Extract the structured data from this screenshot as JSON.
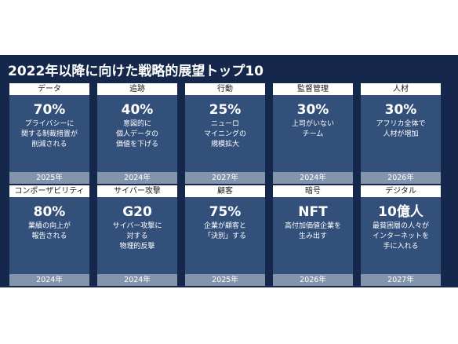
{
  "slide": {
    "title": "2022年以降に向けた戦略的展望トップ10",
    "background": "#15284b",
    "card_color": "#33507a",
    "year_bar_color": "#8295ad"
  },
  "cards": [
    {
      "category": "データ",
      "value": "70%",
      "lines": [
        "プライバシーに",
        "関する制裁措置が",
        "削減される"
      ],
      "year": "2025年"
    },
    {
      "category": "追跡",
      "value": "40%",
      "lines": [
        "意図的に",
        "個人データの",
        "価値を下げる"
      ],
      "year": "2024年"
    },
    {
      "category": "行動",
      "value": "25%",
      "lines": [
        "ニューロ",
        "マイニングの",
        "規模拡大"
      ],
      "year": "2027年"
    },
    {
      "category": "監督管理",
      "value": "30%",
      "lines": [
        "上司がいない",
        "チーム"
      ],
      "year": "2024年"
    },
    {
      "category": "人材",
      "value": "30%",
      "lines": [
        "アフリカ全体で",
        "人材が増加"
      ],
      "year": "2026年"
    },
    {
      "category": "コンポーザビリティ",
      "value": "80%",
      "lines": [
        "業績の向上が",
        "報告される"
      ],
      "year": "2024年"
    },
    {
      "category": "サイバー攻撃",
      "value": "G20",
      "lines": [
        "サイバー攻撃に",
        "対する",
        "物理的反撃"
      ],
      "year": "2024年"
    },
    {
      "category": "顧客",
      "value": "75%",
      "lines": [
        "企業が顧客と",
        "「決別」する"
      ],
      "year": "2025年"
    },
    {
      "category": "暗号",
      "value": "NFT",
      "lines": [
        "高付加価値企業を",
        "生み出す"
      ],
      "year": "2026年"
    },
    {
      "category": "デジタル",
      "value": "10億人",
      "lines": [
        "最貧困層の人々が",
        "インターネットを",
        "手に入れる"
      ],
      "year": "2027年"
    }
  ]
}
